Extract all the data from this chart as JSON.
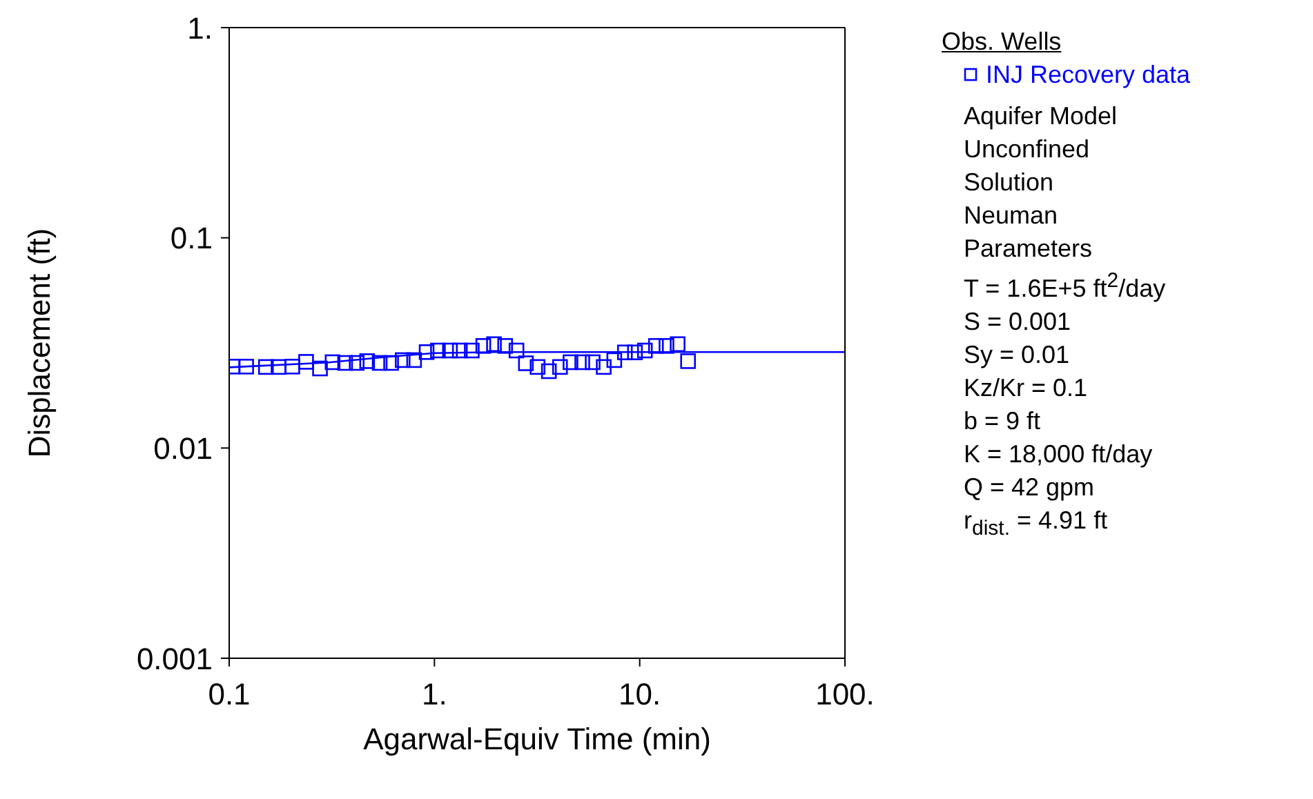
{
  "chart_data": {
    "type": "line",
    "xlabel": "Agarwal-Equiv Time (min)",
    "ylabel": "Displacement (ft)",
    "log": "xy",
    "xlim": [
      0.1,
      100
    ],
    "xticks": [
      0.1,
      {
        "value": 1,
        "label": "1."
      },
      {
        "value": 10,
        "label": "10."
      },
      {
        "value": 100,
        "label": "100."
      }
    ],
    "ylim": [
      0.001,
      1
    ],
    "yticks": [
      0.001,
      0.01,
      0.1,
      {
        "value": 1,
        "label": "1."
      }
    ],
    "legend": "right",
    "legend_title": "Obs. Wells",
    "series": [
      {
        "name": "INJ Recovery data",
        "type": "scatter",
        "color": "#0000ff",
        "marker": "square",
        "x": [
          0.104,
          0.121,
          0.151,
          0.174,
          0.203,
          0.237,
          0.277,
          0.319,
          0.367,
          0.418,
          0.47,
          0.541,
          0.615,
          0.7,
          0.796,
          0.916,
          1.04,
          1.19,
          1.33,
          1.52,
          1.73,
          1.95,
          2.21,
          2.51,
          2.79,
          3.18,
          3.61,
          4.09,
          4.6,
          5.25,
          5.9,
          6.68,
          7.52,
          8.47,
          9.48,
          10.6,
          12.0,
          13.5,
          15.3,
          17.2
        ],
        "values": [
          0.0244,
          0.0244,
          0.0243,
          0.0243,
          0.0244,
          0.0257,
          0.0239,
          0.0256,
          0.0254,
          0.0254,
          0.0259,
          0.0254,
          0.0254,
          0.0262,
          0.0262,
          0.0286,
          0.0291,
          0.0291,
          0.0291,
          0.0291,
          0.0306,
          0.0312,
          0.0306,
          0.0291,
          0.0253,
          0.0243,
          0.0232,
          0.0243,
          0.0256,
          0.0256,
          0.0256,
          0.0243,
          0.0262,
          0.0285,
          0.0285,
          0.0291,
          0.0306,
          0.0306,
          0.0312,
          0.0259
        ]
      },
      {
        "color": "#0000ff",
        "marker": "none",
        "x": [
          0.1,
          0.3,
          0.6,
          1,
          2,
          100
        ],
        "values": [
          0.0242,
          0.0255,
          0.0272,
          0.0283,
          0.0286,
          0.0286
        ]
      }
    ],
    "annotations": [
      "Aquifer Model",
      "Unconfined",
      "Solution",
      "Neuman",
      "Parameters",
      "T = 1.6E+5 ft$^{2}$/day",
      "S = 0.001",
      "Sy = 0.01",
      "Kz/Kr = 0.1",
      "b = 9 ft",
      "K = 18,000 ft/day",
      "Q = 42 gpm",
      "r$_{dist.}$ = 4.91 ft"
    ]
  }
}
